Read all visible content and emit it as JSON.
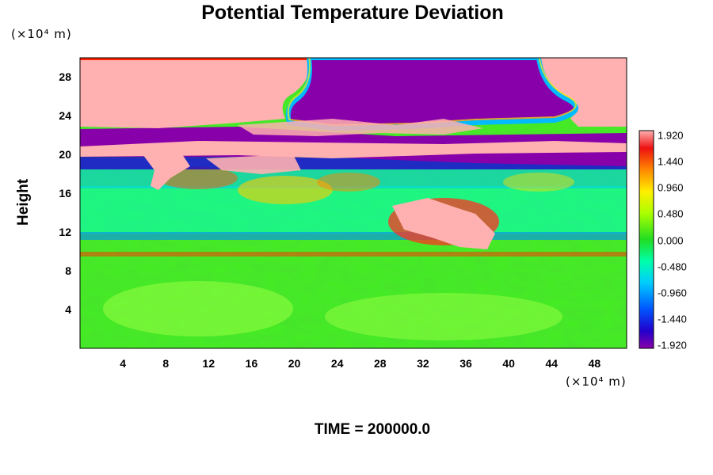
{
  "chart_data": {
    "type": "heatmap",
    "title": "Potential Temperature Deviation",
    "ylabel": "Height",
    "x_unit": "(×10⁴ m)",
    "y_unit": "(×10⁴ m)",
    "x_ticks": [
      "4",
      "8",
      "12",
      "16",
      "20",
      "24",
      "28",
      "32",
      "36",
      "40",
      "44",
      "48"
    ],
    "y_ticks": [
      "4",
      "8",
      "12",
      "16",
      "20",
      "24",
      "28"
    ],
    "xlim": [
      0,
      51
    ],
    "ylim": [
      0,
      30
    ],
    "colorbar": {
      "labels": [
        "1.920",
        "1.440",
        "0.960",
        "0.480",
        "0.000",
        "-0.480",
        "-0.960",
        "-1.440",
        "-1.920"
      ],
      "range": [
        -1.92,
        1.92
      ]
    },
    "footer": "TIME = 200000.0"
  }
}
